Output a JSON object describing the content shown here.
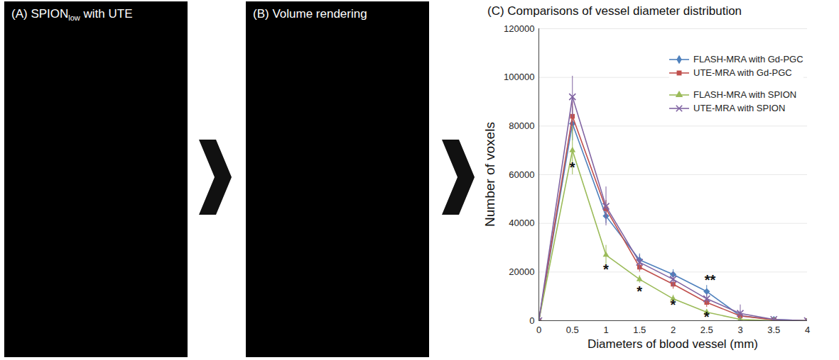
{
  "panels": [
    {
      "label": "(A) SPION",
      "label_subscript": "low",
      "label_suffix": " with UTE"
    },
    {
      "label": "(B) Volume rendering"
    }
  ],
  "chart_data": {
    "type": "line",
    "title": "(C) Comparisons of vessel diameter distribution",
    "x_label": "Diameters of blood vessel (mm)",
    "y_label": "Number of voxels",
    "x": [
      0,
      0.5,
      1,
      1.5,
      2,
      2.5,
      3,
      3.5,
      4
    ],
    "xlim": [
      0,
      4
    ],
    "xticks": [
      0,
      0.5,
      1,
      1.5,
      2,
      2.5,
      3,
      3.5,
      4
    ],
    "ylim": [
      0,
      120000
    ],
    "yticks": [
      0,
      20000,
      40000,
      60000,
      80000,
      100000,
      120000
    ],
    "grid": true,
    "legend": "upper right",
    "series": [
      {
        "name": "FLASH-MRA with Gd-PGC",
        "color": "#4f81bd",
        "marker": "diamond",
        "values": [
          0,
          81000,
          43000,
          25000,
          19000,
          12000,
          2000,
          500,
          0
        ],
        "errors": [
          0,
          7000,
          3000,
          2500,
          2000,
          2500,
          2000,
          0,
          0
        ]
      },
      {
        "name": "UTE-MRA with Gd-PGC",
        "color": "#c0504d",
        "marker": "square",
        "values": [
          0,
          84000,
          46000,
          22000,
          15000,
          7500,
          2000,
          300,
          0
        ],
        "errors": [
          0,
          6000,
          3500,
          2000,
          2000,
          2000,
          1500,
          0,
          0
        ]
      },
      {
        "name": "FLASH-MRA with SPION",
        "color": "#9bbb59",
        "marker": "triangle",
        "values": [
          0,
          70000,
          27000,
          17000,
          9000,
          3500,
          500,
          0,
          0
        ],
        "errors": [
          0,
          10000,
          4000,
          1500,
          1500,
          1000,
          500,
          0,
          0
        ]
      },
      {
        "name": "UTE-MRA with SPION",
        "color": "#8064a2",
        "marker": "cross",
        "values": [
          0,
          92000,
          47000,
          24000,
          17000,
          9000,
          3000,
          500,
          0
        ],
        "errors": [
          0,
          8500,
          8000,
          3000,
          3000,
          2000,
          3500,
          0,
          0
        ]
      }
    ],
    "annotations": [
      {
        "text": "*",
        "x": 0.5,
        "y": 63000
      },
      {
        "text": "*",
        "x": 1,
        "y": 21000
      },
      {
        "text": "*",
        "x": 1.5,
        "y": 12000
      },
      {
        "text": "*",
        "x": 2,
        "y": 6500
      },
      {
        "text": "*",
        "x": 2.5,
        "y": 1500
      },
      {
        "text": "**",
        "x": 2.55,
        "y": 16500
      }
    ]
  }
}
